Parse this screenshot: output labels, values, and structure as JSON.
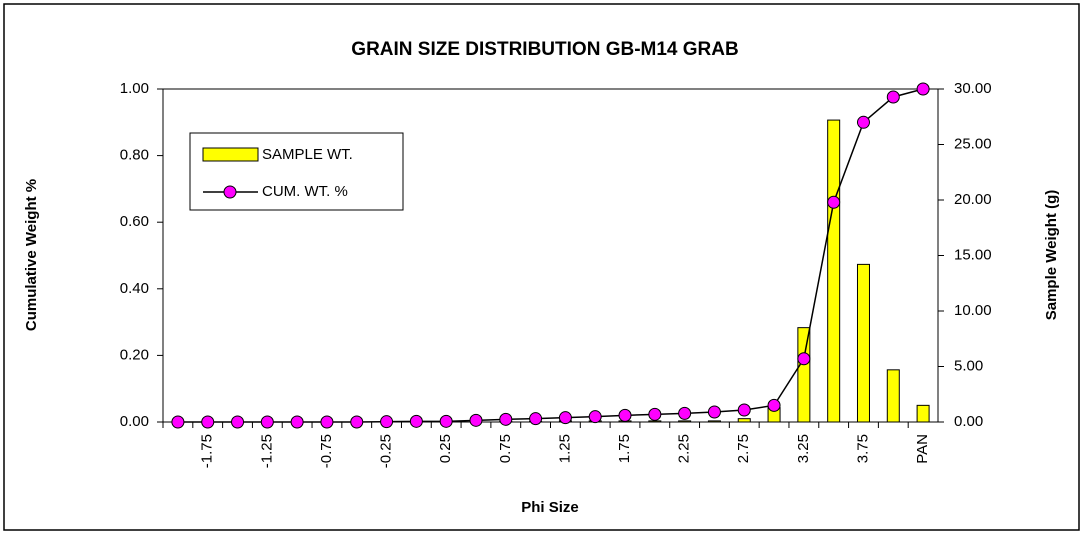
{
  "chart_data": {
    "type": "bar_line",
    "title": "GRAIN SIZE DISTRIBUTION GB-M14 GRAB",
    "x_label": "Phi Size",
    "y_label": "Cumulative Weight %",
    "y2_label": "Sample Weight (g)",
    "categories": [
      null,
      "-1.75",
      null,
      "-1.25",
      null,
      "-0.75",
      null,
      "-0.25",
      null,
      "0.25",
      null,
      "0.75",
      null,
      "1.25",
      null,
      "1.75",
      null,
      "2.25",
      null,
      "2.75",
      null,
      "3.25",
      null,
      "3.75",
      null,
      "PAN"
    ],
    "series": [
      {
        "name": "SAMPLE WT.",
        "color": "#ffff00",
        "axis": "y2",
        "kind": "bar",
        "values": [
          0,
          0,
          0,
          0,
          0,
          0,
          0,
          0,
          0,
          0,
          0,
          0.05,
          0.05,
          0.1,
          0.1,
          0.1,
          0.1,
          0.1,
          0.1,
          0.3,
          1.3,
          8.5,
          27.2,
          14.2,
          4.7,
          1.5
        ]
      },
      {
        "name": "CUM. WT. %",
        "color": "#ff00ff",
        "axis": "y",
        "kind": "line",
        "values": [
          0,
          0,
          0,
          0,
          0,
          0,
          0,
          0.001,
          0.002,
          0.002,
          0.005,
          0.008,
          0.01,
          0.013,
          0.016,
          0.02,
          0.023,
          0.026,
          0.03,
          0.036,
          0.05,
          0.19,
          0.66,
          0.9,
          0.976,
          1.0
        ]
      }
    ],
    "ylim": [
      0,
      1
    ],
    "yticks": [
      {
        "value": 0,
        "label": "0.00"
      },
      {
        "value": 0.2,
        "label": "0.20"
      },
      {
        "value": 0.4,
        "label": "0.40"
      },
      {
        "value": 0.6,
        "label": "0.60"
      },
      {
        "value": 0.8,
        "label": "0.80"
      },
      {
        "value": 1,
        "label": "1.00"
      }
    ],
    "y2lim": [
      0,
      30
    ],
    "y2ticks": [
      {
        "value": 0,
        "label": "0.00"
      },
      {
        "value": 5,
        "label": "5.00"
      },
      {
        "value": 10,
        "label": "10.00"
      },
      {
        "value": 15,
        "label": "15.00"
      },
      {
        "value": 20,
        "label": "20.00"
      },
      {
        "value": 25,
        "label": "25.00"
      },
      {
        "value": 30,
        "label": "30.00"
      }
    ]
  }
}
